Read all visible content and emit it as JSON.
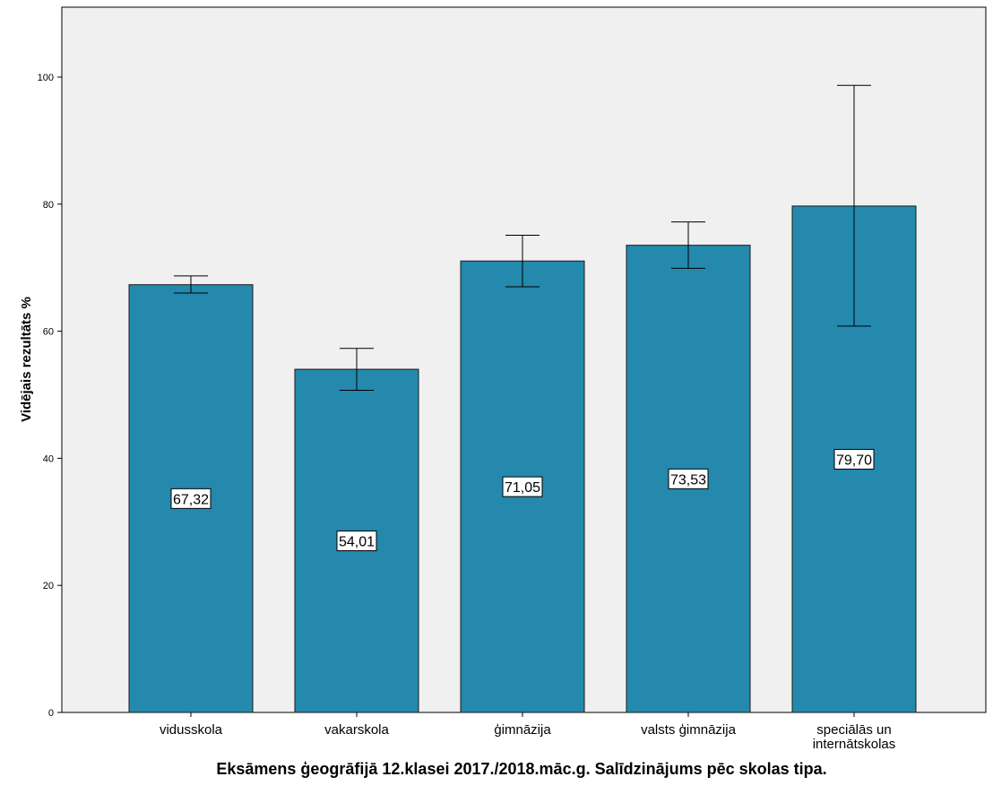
{
  "chart_data": {
    "type": "bar",
    "categories": [
      "vidusskola",
      "vakarskola",
      "ģimnāzija",
      "valsts ģimnāzija",
      "speciālās un internātskolas"
    ],
    "category_lines": [
      [
        "vidusskola"
      ],
      [
        "vakarskola"
      ],
      [
        "ģimnāzija"
      ],
      [
        "valsts ģimnāzija"
      ],
      [
        "speciālās un",
        "internātskolas"
      ]
    ],
    "values": [
      67.32,
      54.01,
      71.05,
      73.53,
      79.7
    ],
    "value_labels": [
      "67,32",
      "54,01",
      "71,05",
      "73,53",
      "79,70"
    ],
    "error_low": [
      66.0,
      50.7,
      67.0,
      69.9,
      60.8
    ],
    "error_high": [
      68.7,
      57.3,
      75.1,
      77.2,
      98.7
    ],
    "xlabel": "Eksāmens ģeogrāfijā 12.klasei 2017./2018.māc.g. Salīdzinājums pēc skolas tipa.",
    "ylabel": "Vidējais rezultāts %",
    "ylim": [
      0,
      111
    ],
    "yticks": [
      0,
      20,
      40,
      60,
      80,
      100
    ],
    "grid": false,
    "legend": "none",
    "colors": {
      "bar_fill": "#2489ad",
      "bar_stroke": "#1a1a1a",
      "plot_background": "#f0f0f0",
      "axis": "#000000"
    }
  }
}
